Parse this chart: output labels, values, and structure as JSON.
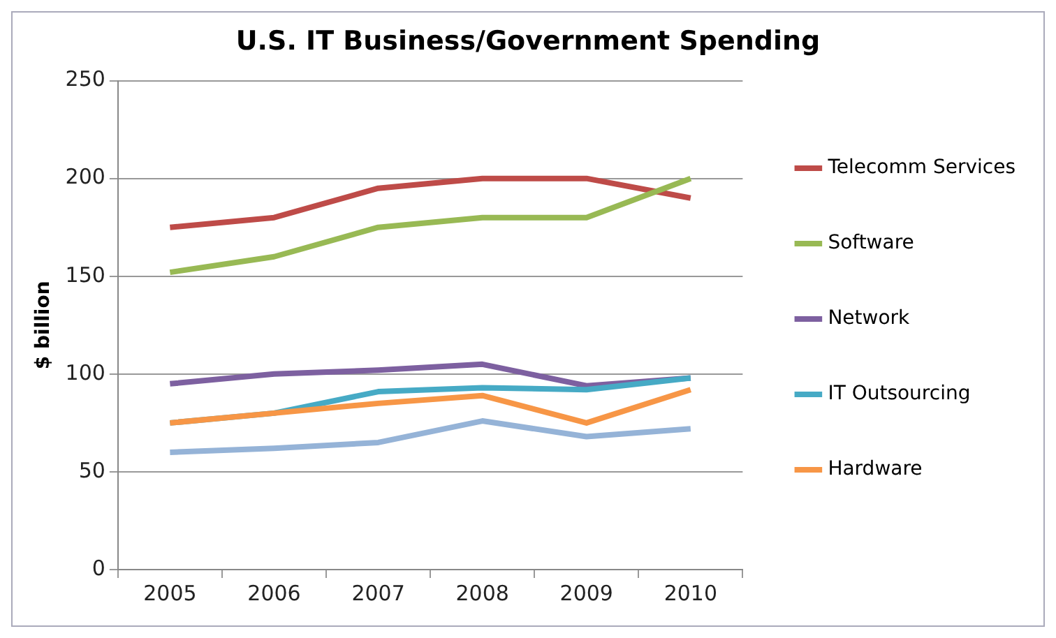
{
  "chart_data": {
    "type": "line",
    "title": "U.S. IT Business/Government Spending",
    "ylabel": "$ billion",
    "categories": [
      "2005",
      "2006",
      "2007",
      "2008",
      "2009",
      "2010"
    ],
    "series": [
      {
        "name": "Telecomm Services",
        "color": "#be4b48",
        "values": [
          175,
          180,
          195,
          200,
          200,
          190
        ]
      },
      {
        "name": "Software",
        "color": "#98b954",
        "values": [
          152,
          160,
          175,
          180,
          180,
          200
        ]
      },
      {
        "name": "Network",
        "color": "#7d60a0",
        "values": [
          95,
          100,
          102,
          105,
          94,
          98
        ]
      },
      {
        "name": "IT Outsourcing",
        "color": "#46aac5",
        "values": [
          75,
          80,
          91,
          93,
          92,
          98
        ]
      },
      {
        "name": "Hardware",
        "color": "#f79646",
        "values": [
          75,
          80,
          85,
          89,
          75,
          92
        ]
      },
      {
        "color": "#95b3d7",
        "values": [
          60,
          62,
          65,
          76,
          68,
          72
        ]
      }
    ],
    "ylim": [
      0,
      250
    ],
    "yticks": [
      0,
      50,
      100,
      150,
      200,
      250
    ],
    "grid": "y",
    "legend": "right",
    "marker": "none",
    "line_style": "solid"
  }
}
